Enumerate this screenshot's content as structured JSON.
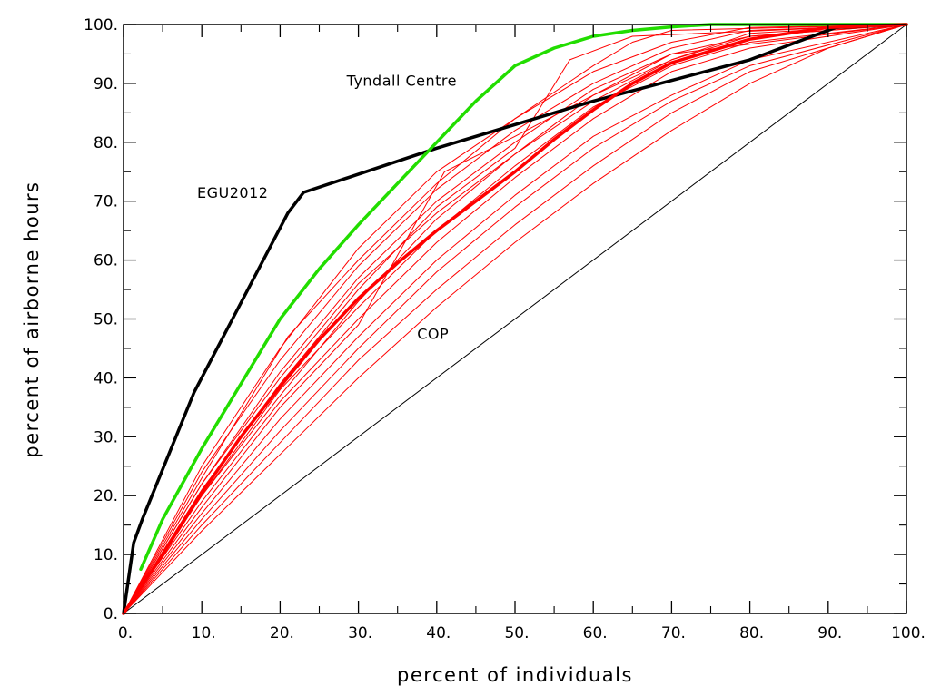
{
  "chart_data": {
    "type": "line",
    "title": "",
    "xlabel": "percent of individuals",
    "ylabel": "percent of airborne hours",
    "xlim": [
      0,
      100
    ],
    "ylim": [
      0,
      100
    ],
    "x_ticks": [
      "0.",
      "10.",
      "20.",
      "30.",
      "40.",
      "50.",
      "60.",
      "70.",
      "80.",
      "90.",
      "100."
    ],
    "y_ticks": [
      "0.",
      "10.",
      "20.",
      "30.",
      "40.",
      "50.",
      "60.",
      "70.",
      "80.",
      "90.",
      "100."
    ],
    "grid": false,
    "colors": {
      "egu": "#000000",
      "tyndall": "#22dd00",
      "cop": "#ff0000",
      "equality": "#000000"
    },
    "annotations": [
      {
        "text": "Tyndall Centre",
        "x": 28.5,
        "y": 90.5
      },
      {
        "text": "EGU2012",
        "x": 9.4,
        "y": 71.5
      },
      {
        "text": "COP",
        "x": 37.5,
        "y": 47.5
      }
    ],
    "series": [
      {
        "name": "EGU2012",
        "color": "#000000",
        "width": 3.5,
        "points": [
          [
            0,
            0
          ],
          [
            1.3,
            12
          ],
          [
            2.4,
            16
          ],
          [
            9,
            37.5
          ],
          [
            21,
            68
          ],
          [
            23,
            71.5
          ],
          [
            40,
            79
          ],
          [
            60,
            87
          ],
          [
            80,
            94
          ],
          [
            91,
            99.5
          ],
          [
            100,
            100
          ]
        ]
      },
      {
        "name": "Tyndall Centre",
        "color": "#22dd00",
        "width": 3.5,
        "points": [
          [
            2.2,
            7.5
          ],
          [
            5,
            16
          ],
          [
            10,
            28
          ],
          [
            15,
            39
          ],
          [
            20,
            50
          ],
          [
            25,
            58.5
          ],
          [
            30,
            66
          ],
          [
            35,
            73
          ],
          [
            40,
            80
          ],
          [
            45,
            87
          ],
          [
            50,
            93
          ],
          [
            55,
            96
          ],
          [
            60,
            98
          ],
          [
            65,
            99
          ],
          [
            70,
            99.6
          ],
          [
            75,
            100
          ],
          [
            100,
            100
          ]
        ]
      },
      {
        "name": "COP",
        "color": "#ff0000",
        "width": 3.5,
        "points": [
          [
            0,
            0
          ],
          [
            5,
            10
          ],
          [
            10,
            20.5
          ],
          [
            15,
            30
          ],
          [
            20,
            38.5
          ],
          [
            25,
            46.5
          ],
          [
            30,
            53.5
          ],
          [
            35,
            59.5
          ],
          [
            40,
            65
          ],
          [
            45,
            70
          ],
          [
            50,
            75
          ],
          [
            55,
            80.5
          ],
          [
            60,
            85.5
          ],
          [
            65,
            90
          ],
          [
            70,
            93.5
          ],
          [
            75,
            95.5
          ],
          [
            80,
            97.5
          ],
          [
            85,
            98.5
          ],
          [
            90,
            99.5
          ],
          [
            100,
            100
          ]
        ]
      },
      {
        "color": "#ff0000",
        "width": 1,
        "points": [
          [
            0,
            0
          ],
          [
            10,
            25
          ],
          [
            20,
            45
          ],
          [
            30,
            62
          ],
          [
            40,
            75
          ],
          [
            50,
            84
          ],
          [
            60,
            92
          ],
          [
            70,
            97
          ],
          [
            80,
            99.5
          ],
          [
            100,
            100
          ]
        ]
      },
      {
        "color": "#ff0000",
        "width": 1,
        "points": [
          [
            0,
            0
          ],
          [
            10,
            24
          ],
          [
            20,
            43
          ],
          [
            30,
            59
          ],
          [
            40,
            72
          ],
          [
            50,
            82
          ],
          [
            60,
            90
          ],
          [
            70,
            96
          ],
          [
            80,
            99
          ],
          [
            100,
            100
          ]
        ]
      },
      {
        "color": "#ff0000",
        "width": 1,
        "points": [
          [
            0,
            0
          ],
          [
            10,
            23
          ],
          [
            21,
            47
          ],
          [
            30,
            60
          ],
          [
            40,
            73
          ],
          [
            50,
            84
          ],
          [
            60,
            93
          ],
          [
            65,
            97
          ],
          [
            70,
            99
          ],
          [
            100,
            100
          ]
        ]
      },
      {
        "color": "#ff0000",
        "width": 1,
        "points": [
          [
            0,
            0
          ],
          [
            10,
            22
          ],
          [
            20,
            41
          ],
          [
            30,
            57
          ],
          [
            40,
            70
          ],
          [
            50,
            80
          ],
          [
            60,
            89
          ],
          [
            70,
            95
          ],
          [
            80,
            98
          ],
          [
            100,
            100
          ]
        ]
      },
      {
        "color": "#ff0000",
        "width": 1,
        "points": [
          [
            0,
            0
          ],
          [
            10,
            21
          ],
          [
            20,
            39
          ],
          [
            30,
            55
          ],
          [
            40,
            69
          ],
          [
            50,
            79
          ],
          [
            57,
            94
          ],
          [
            65,
            98
          ],
          [
            100,
            100
          ]
        ]
      },
      {
        "color": "#ff0000",
        "width": 1,
        "points": [
          [
            0,
            0
          ],
          [
            10,
            20
          ],
          [
            20,
            38
          ],
          [
            30,
            52
          ],
          [
            40,
            65
          ],
          [
            50,
            76
          ],
          [
            60,
            86
          ],
          [
            70,
            93
          ],
          [
            80,
            97
          ],
          [
            100,
            100
          ]
        ]
      },
      {
        "color": "#ff0000",
        "width": 1,
        "points": [
          [
            0,
            0
          ],
          [
            10,
            19
          ],
          [
            20,
            36
          ],
          [
            30,
            50
          ],
          [
            40,
            63
          ],
          [
            50,
            74
          ],
          [
            60,
            84
          ],
          [
            70,
            92
          ],
          [
            80,
            96
          ],
          [
            100,
            100
          ]
        ]
      },
      {
        "color": "#ff0000",
        "width": 1,
        "points": [
          [
            0,
            0
          ],
          [
            10,
            18
          ],
          [
            20,
            35
          ],
          [
            30,
            49
          ],
          [
            41,
            75
          ],
          [
            50,
            81
          ],
          [
            60,
            88
          ],
          [
            70,
            94
          ],
          [
            80,
            98
          ],
          [
            100,
            100
          ]
        ]
      },
      {
        "color": "#ff0000",
        "width": 1,
        "points": [
          [
            0,
            0
          ],
          [
            10,
            17
          ],
          [
            20,
            33
          ],
          [
            30,
            47
          ],
          [
            40,
            60
          ],
          [
            50,
            71
          ],
          [
            60,
            81
          ],
          [
            70,
            88
          ],
          [
            80,
            94
          ],
          [
            100,
            100
          ]
        ]
      },
      {
        "color": "#ff0000",
        "width": 1,
        "points": [
          [
            0,
            0
          ],
          [
            10,
            16
          ],
          [
            20,
            31
          ],
          [
            30,
            45
          ],
          [
            40,
            58
          ],
          [
            50,
            69
          ],
          [
            60,
            79
          ],
          [
            70,
            87
          ],
          [
            80,
            93
          ],
          [
            100,
            100
          ]
        ]
      },
      {
        "color": "#ff0000",
        "width": 1,
        "points": [
          [
            0,
            0
          ],
          [
            10,
            15
          ],
          [
            20,
            29
          ],
          [
            30,
            43
          ],
          [
            40,
            55
          ],
          [
            50,
            66
          ],
          [
            60,
            76
          ],
          [
            70,
            85
          ],
          [
            80,
            92
          ],
          [
            100,
            100
          ]
        ]
      },
      {
        "color": "#ff0000",
        "width": 1,
        "points": [
          [
            0,
            0
          ],
          [
            10,
            14
          ],
          [
            20,
            27
          ],
          [
            30,
            40
          ],
          [
            40,
            52
          ],
          [
            50,
            63
          ],
          [
            60,
            73
          ],
          [
            70,
            82
          ],
          [
            80,
            90
          ],
          [
            90,
            96
          ],
          [
            100,
            100
          ]
        ]
      },
      {
        "color": "#ff0000",
        "width": 1,
        "points": [
          [
            0,
            0
          ],
          [
            10,
            20
          ],
          [
            20,
            37
          ],
          [
            30,
            53
          ],
          [
            40,
            67
          ],
          [
            50,
            78
          ],
          [
            60,
            87
          ],
          [
            70,
            94
          ],
          [
            80,
            98.5
          ],
          [
            100,
            100
          ]
        ]
      },
      {
        "color": "#ff0000",
        "width": 1,
        "points": [
          [
            0,
            0
          ],
          [
            10,
            22
          ],
          [
            20,
            40
          ],
          [
            30,
            56
          ],
          [
            40,
            68
          ],
          [
            50,
            78
          ],
          [
            55,
            83
          ],
          [
            60,
            88
          ],
          [
            70,
            95
          ],
          [
            100,
            100
          ]
        ]
      },
      {
        "color": "#000000",
        "width": 1,
        "points": [
          [
            0,
            0
          ],
          [
            100,
            100
          ]
        ]
      }
    ]
  }
}
